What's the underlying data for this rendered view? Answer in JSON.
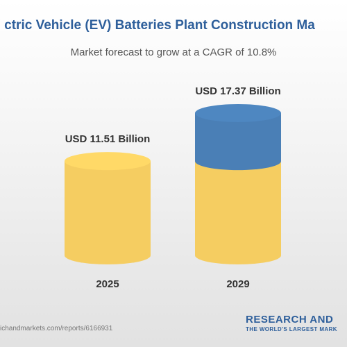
{
  "header": {
    "title": "ctric Vehicle (EV) Batteries Plant Construction Ma",
    "subtitle": "Market forecast to grow at a CAGR of 10.8%"
  },
  "chart_data": {
    "type": "bar",
    "categories": [
      "2025",
      "2029"
    ],
    "series": [
      {
        "values": [
          11.51,
          11.51
        ],
        "color": "#f5cd61"
      },
      {
        "values": [
          0,
          5.86
        ],
        "color": "#4a7fb6"
      }
    ],
    "data_labels": [
      "USD 11.51 Billion",
      "USD 17.37 Billion"
    ],
    "totals": [
      11.51,
      17.37
    ],
    "ylim": [
      0,
      17.37
    ],
    "grid": false
  },
  "footer": {
    "url": "ichandmarkets.com/reports/6166931",
    "brand_name": "RESEARCH AND",
    "brand_tagline": "THE WORLD'S LARGEST MARK"
  },
  "colors": {
    "title": "#2e5f9b",
    "bar_base": "#f5cd61",
    "bar_growth": "#4a7fb6"
  }
}
